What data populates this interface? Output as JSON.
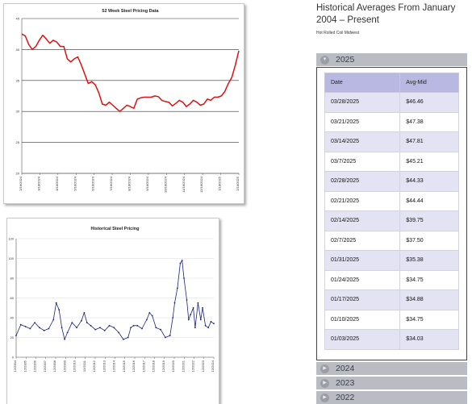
{
  "right_panel": {
    "title": "Historical Averages From January 2004 – Present",
    "subtitle": "Hot Rolled Coil Midwest",
    "accordions": [
      {
        "label": "2025",
        "expanded": true,
        "icon": "chevron-down-icon"
      },
      {
        "label": "2024",
        "expanded": false,
        "icon": "chevron-right-icon"
      },
      {
        "label": "2023",
        "expanded": false,
        "icon": "chevron-right-icon"
      },
      {
        "label": "2022",
        "expanded": false,
        "icon": "chevron-right-icon"
      }
    ],
    "table": {
      "headers": [
        "Date",
        "Avg-Mid"
      ],
      "rows": [
        [
          "03/28/2025",
          "$46.46"
        ],
        [
          "03/21/2025",
          "$47.38"
        ],
        [
          "03/14/2025",
          "$47.81"
        ],
        [
          "03/7/2025",
          "$45.21"
        ],
        [
          "02/28/2025",
          "$44.33"
        ],
        [
          "02/21/2025",
          "$44.44"
        ],
        [
          "02/14/2025",
          "$39.75"
        ],
        [
          "02/7/2025",
          "$37.50"
        ],
        [
          "01/31/2025",
          "$35.38"
        ],
        [
          "01/24/2025",
          "$34.75"
        ],
        [
          "01/17/2025",
          "$34.88"
        ],
        [
          "01/10/2025",
          "$34.75"
        ],
        [
          "01/03/2025",
          "$34.03"
        ]
      ]
    }
  },
  "colors": {
    "line1": "#dd1111",
    "line2": "#1a237e",
    "table_header": "#b8b8e2",
    "table_odd_row": "#e3e3f3",
    "accordion": "#b9bcc2"
  },
  "chart_data": [
    {
      "type": "line",
      "title": "52 Week Steel Pricing Data",
      "xlabel": "",
      "ylabel": "",
      "ylim": [
        20,
        45
      ],
      "y_ticks": [
        20,
        25,
        30,
        35,
        40,
        45
      ],
      "x_tick_labels": [
        "2/18/2024",
        "3/18/2024",
        "4/18/2024",
        "5/18/2024",
        "6/18/2024",
        "7/18/2024",
        "8/18/2024",
        "9/18/2024",
        "10/18/2024",
        "11/18/2024",
        "12/18/2024",
        "1/18/2025",
        "2/18/2025"
      ],
      "grid": true,
      "series": [
        {
          "color": "#dd1111",
          "values": [
            42.5,
            42.2,
            40.8,
            40.0,
            40.5,
            41.5,
            42.3,
            41.7,
            41.0,
            41.5,
            41.2,
            40.5,
            40.5,
            38.5,
            38.0,
            38.5,
            38.8,
            37.5,
            36.0,
            34.5,
            34.8,
            34.3,
            33.0,
            31.2,
            31.0,
            31.5,
            31.0,
            30.5,
            30.0,
            30.5,
            31.0,
            30.8,
            30.5,
            32.0,
            32.2,
            32.3,
            32.3,
            32.3,
            32.5,
            32.4,
            31.8,
            31.6,
            31.5,
            30.9,
            31.3,
            31.8,
            31.5,
            30.8,
            31.2,
            31.8,
            31.5,
            31.0,
            31.2,
            32.0,
            31.8,
            32.3,
            32.3,
            32.5,
            33.2,
            34.5,
            35.5,
            37.5,
            39.8
          ]
        }
      ]
    },
    {
      "type": "line",
      "title": "Historical Steel Pricing",
      "xlabel": "",
      "ylabel": "",
      "ylim": [
        0,
        120
      ],
      "y_ticks": [
        0,
        20,
        40,
        60,
        80,
        100,
        120
      ],
      "x_tick_labels": [
        "12/2004",
        "12/2005",
        "12/2006",
        "12/2007",
        "12/2008",
        "12/2009",
        "12/2010",
        "12/2011",
        "12/2012",
        "12/2013",
        "12/2014",
        "12/2015",
        "12/2016",
        "12/2017",
        "12/2018",
        "12/2019",
        "12/2020",
        "12/2021",
        "12/2022",
        "12/2023",
        "12/2024"
      ],
      "grid": true,
      "series": [
        {
          "color": "#1a237e",
          "x": [
            2004.0,
            2004.5,
            2005.0,
            2005.5,
            2006.0,
            2006.5,
            2007.0,
            2007.5,
            2008.0,
            2008.3,
            2008.6,
            2008.9,
            2009.2,
            2009.5,
            2010.0,
            2010.5,
            2011.0,
            2011.3,
            2011.6,
            2012.0,
            2012.5,
            2013.0,
            2013.5,
            2014.0,
            2014.5,
            2015.0,
            2015.5,
            2016.0,
            2016.3,
            2016.6,
            2017.0,
            2017.5,
            2018.0,
            2018.3,
            2018.6,
            2019.0,
            2019.5,
            2020.0,
            2020.5,
            2020.8,
            2021.0,
            2021.3,
            2021.6,
            2021.8,
            2022.0,
            2022.3,
            2022.5,
            2022.7,
            2023.0,
            2023.2,
            2023.5,
            2023.8,
            2024.0,
            2024.3,
            2024.6,
            2024.9,
            2025.2
          ],
          "values": [
            22,
            33,
            31,
            29,
            35,
            30,
            27,
            29,
            38,
            55,
            48,
            30,
            18,
            25,
            35,
            30,
            37,
            45,
            35,
            32,
            28,
            30,
            27,
            32,
            30,
            25,
            18,
            20,
            30,
            32,
            32,
            29,
            38,
            45,
            42,
            30,
            28,
            20,
            22,
            40,
            55,
            70,
            95,
            98,
            80,
            58,
            38,
            43,
            50,
            30,
            55,
            38,
            50,
            32,
            30,
            36,
            34
          ]
        }
      ]
    }
  ]
}
